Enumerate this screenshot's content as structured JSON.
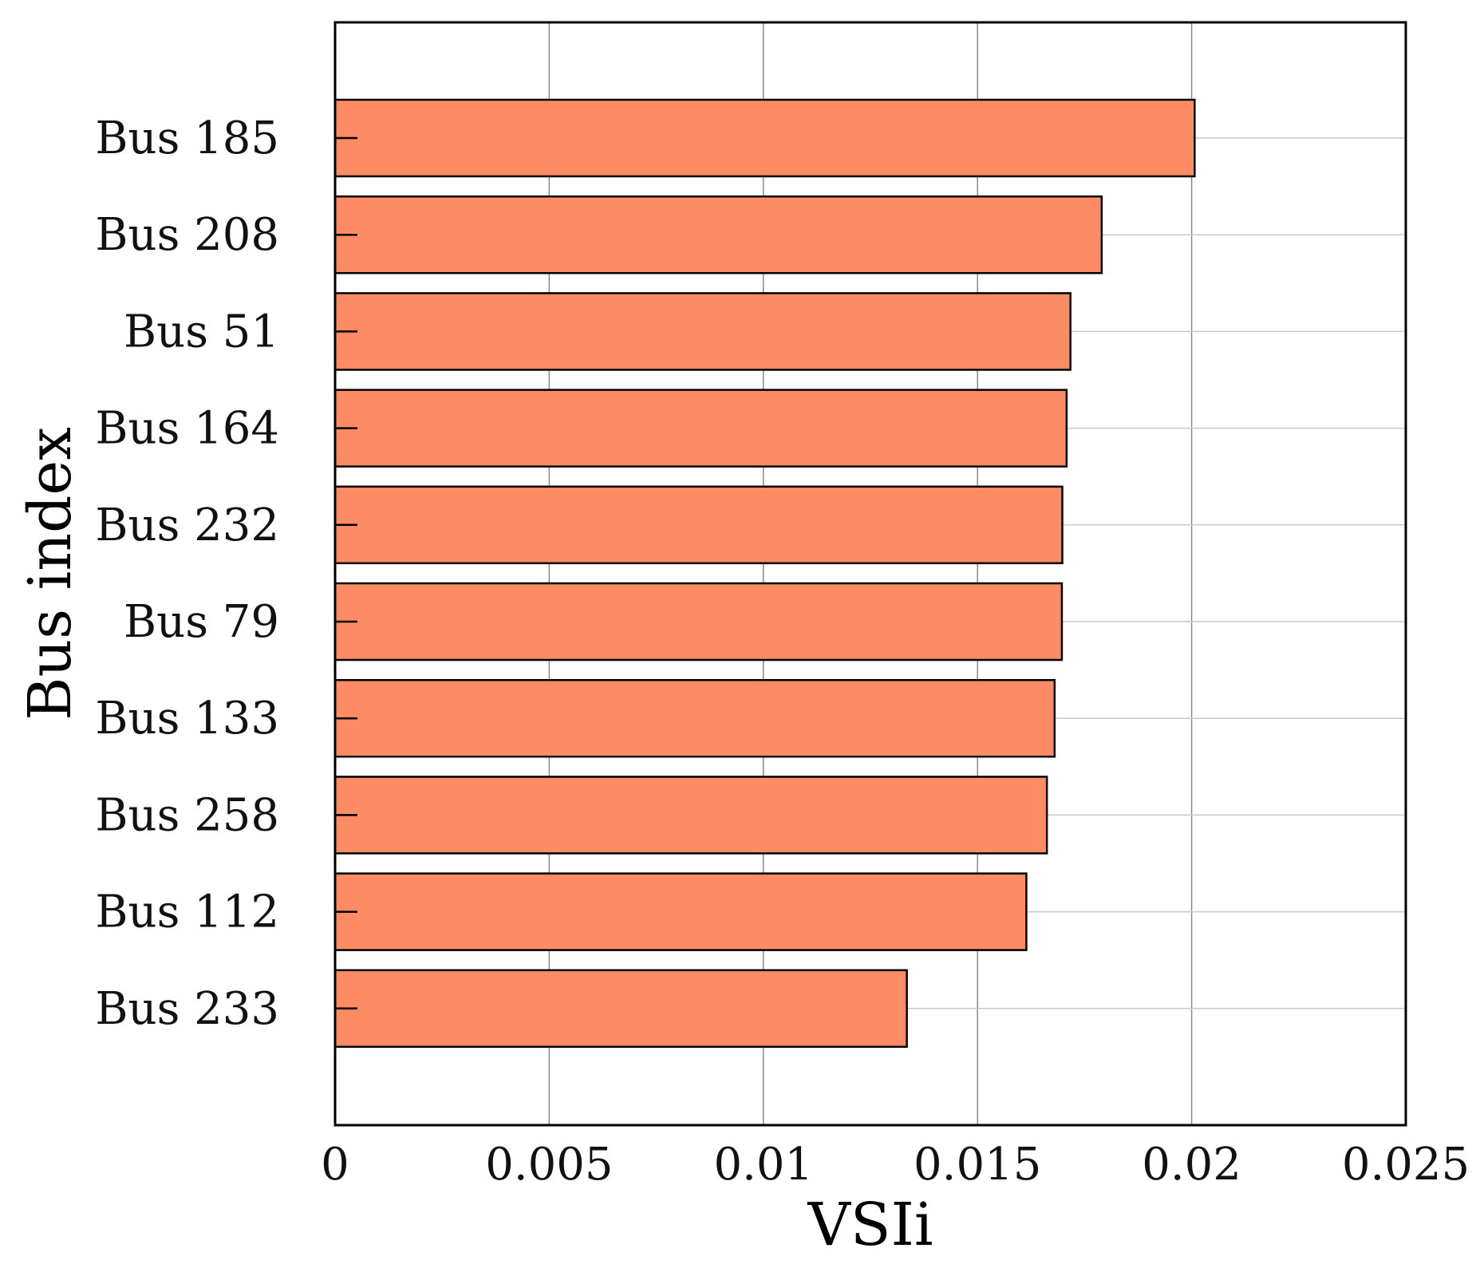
{
  "chart_data": {
    "type": "bar",
    "orientation": "horizontal",
    "title": "",
    "xlabel": "VSIi",
    "ylabel": "Bus index",
    "categories": [
      "Bus 185",
      "Bus 208",
      "Bus 51",
      "Bus 164",
      "Bus 232",
      "Bus 79",
      "Bus 133",
      "Bus 258",
      "Bus 112",
      "Bus 233"
    ],
    "values": [
      0.02007,
      0.0179,
      0.01717,
      0.01708,
      0.01698,
      0.01697,
      0.0168,
      0.01662,
      0.01614,
      0.01335
    ],
    "xlim": [
      0,
      0.025
    ],
    "xticks": [
      "0",
      "0.005",
      "0.01",
      "0.015",
      "0.02",
      "0.025"
    ],
    "xtick_values": [
      0,
      0.005,
      0.01,
      0.015,
      0.02,
      0.025
    ],
    "grid": true,
    "legend": "none",
    "colors": {
      "bar_fill": "#fd8c65",
      "bar_edge": "#000000",
      "grid": "#c8c8c8",
      "axis": "#000000"
    }
  }
}
